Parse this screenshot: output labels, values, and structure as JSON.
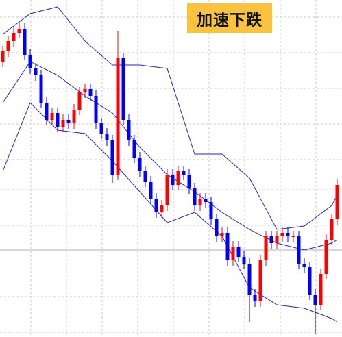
{
  "chart_data": {
    "type": "candlestick",
    "annotation": "加速下跌",
    "up_color": "#ff0000",
    "down_color": "#0000ff",
    "open": [
      402,
      417,
      432,
      444,
      450,
      412,
      392,
      382,
      342,
      317,
      327,
      307,
      317,
      312,
      332,
      357,
      362,
      352,
      312,
      297,
      287,
      237,
      407,
      317,
      287,
      262,
      242,
      227,
      202,
      182,
      192,
      237,
      222,
      242,
      237,
      217,
      192,
      202,
      197,
      172,
      147,
      152,
      112,
      132,
      117,
      107,
      62,
      52,
      112,
      147,
      137,
      147,
      152,
      147,
      147,
      107,
      102,
      62,
      47,
      92,
      142,
      172
    ],
    "high": [
      425,
      440,
      452,
      458,
      458,
      420,
      400,
      390,
      350,
      335,
      335,
      325,
      325,
      340,
      365,
      370,
      370,
      360,
      320,
      305,
      295,
      447,
      415,
      325,
      295,
      270,
      250,
      235,
      210,
      200,
      245,
      245,
      250,
      250,
      245,
      225,
      210,
      210,
      205,
      180,
      160,
      160,
      140,
      140,
      125,
      115,
      70,
      120,
      155,
      155,
      155,
      160,
      160,
      155,
      155,
      115,
      110,
      70,
      100,
      150,
      180,
      230
    ],
    "low": [
      394,
      409,
      424,
      436,
      404,
      384,
      374,
      334,
      309,
      309,
      299,
      299,
      304,
      304,
      324,
      349,
      344,
      304,
      289,
      279,
      225,
      229,
      309,
      279,
      254,
      234,
      219,
      194,
      174,
      174,
      184,
      214,
      214,
      229,
      209,
      184,
      184,
      189,
      164,
      139,
      139,
      104,
      104,
      109,
      99,
      22,
      44,
      44,
      104,
      129,
      129,
      139,
      139,
      139,
      99,
      94,
      54,
      5,
      39,
      84,
      134,
      164
    ],
    "close": [
      417,
      432,
      444,
      450,
      412,
      392,
      382,
      342,
      317,
      327,
      307,
      317,
      312,
      332,
      357,
      362,
      352,
      312,
      297,
      287,
      237,
      407,
      317,
      287,
      262,
      242,
      227,
      202,
      182,
      192,
      237,
      222,
      242,
      237,
      217,
      192,
      202,
      197,
      172,
      147,
      152,
      112,
      132,
      117,
      107,
      62,
      52,
      112,
      147,
      137,
      147,
      152,
      147,
      147,
      107,
      102,
      62,
      47,
      92,
      142,
      172,
      222
    ],
    "ylim": [
      0,
      492
    ],
    "bands": [
      {
        "color": "#2222cc",
        "x": [
          0,
          5,
          10,
          15,
          20,
          25,
          30,
          35,
          40,
          45,
          50,
          55,
          60,
          61
        ],
        "values": [
          442,
          472,
          482,
          432,
          397,
          397,
          392,
          267,
          267,
          232,
          157,
          162,
          192,
          207
        ]
      },
      {
        "color": "#2222cc",
        "x": [
          0,
          5,
          10,
          15,
          20,
          25,
          30,
          35,
          40,
          45,
          50,
          55,
          60,
          61
        ],
        "values": [
          342,
          402,
          382,
          352,
          327,
          277,
          237,
          212,
          182,
          157,
          137,
          127,
          137,
          142
        ]
      },
      {
        "color": "#2222cc",
        "x": [
          0,
          5,
          10,
          15,
          20,
          25,
          30,
          35,
          40,
          45,
          50,
          55,
          60,
          61
        ],
        "values": [
          242,
          342,
          302,
          297,
          257,
          212,
          167,
          182,
          147,
          72,
          47,
          42,
          27,
          22
        ]
      }
    ]
  }
}
